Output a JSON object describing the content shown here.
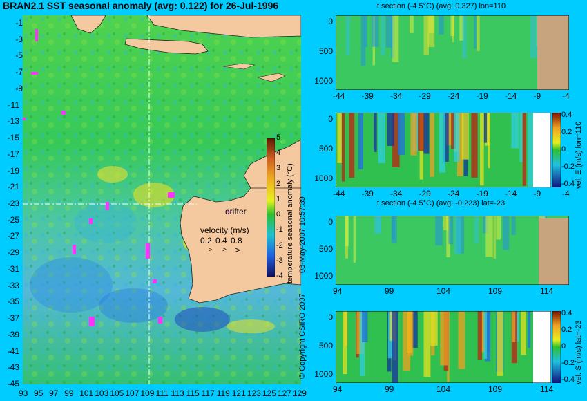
{
  "map": {
    "title": "BRAN2.1 SST seasonal anomaly (avg: 0.122) for 26-Jul-1996",
    "lat_ticks": [
      "-1",
      "-3",
      "-5",
      "-7",
      "-9",
      "-11",
      "-13",
      "-15",
      "-17",
      "-19",
      "-21",
      "-23",
      "-25",
      "-27",
      "-29",
      "-31",
      "-33",
      "-35",
      "-37",
      "-39",
      "-41",
      "-43",
      "-45"
    ],
    "lon_ticks": [
      "93",
      "95",
      "97",
      "99",
      "101",
      "103",
      "105",
      "107",
      "109",
      "111",
      "113",
      "115",
      "117",
      "119",
      "121",
      "123",
      "125",
      "127",
      "129"
    ],
    "colorbar_label": "temperature seasonal anomaly (°C)",
    "colorbar_ticks": [
      "5",
      "4",
      "3",
      "2",
      "1",
      "0",
      "-1",
      "-2",
      "-3",
      "-4"
    ],
    "drifter_label": "drifter",
    "velocity_label": "velocity (m/s)",
    "velocity_values": [
      "0.2",
      "0.4",
      "0.8"
    ],
    "colors": {
      "land": "#f5c9a0",
      "drifter": "#ff33ff",
      "background": "#00ccff"
    }
  },
  "panels": [
    {
      "title": "t section (-4.5°C) (avg: 0.327) lon=110",
      "x_ticks": [
        "-44",
        "-39",
        "-34",
        "-29",
        "-24",
        "-19",
        "-14",
        "-9",
        "-4"
      ],
      "y_ticks": [
        "0",
        "500",
        "1000"
      ]
    },
    {
      "title": "",
      "x_ticks": [
        "-44",
        "-39",
        "-34",
        "-29",
        "-24",
        "-19",
        "-14",
        "-9",
        "-4"
      ],
      "y_ticks": [
        "0",
        "500",
        "1000"
      ],
      "colorbar_label": "vel. E (m/s) lon=110",
      "colorbar_ticks": [
        "0.4",
        "0.2",
        "0",
        "-0.2",
        "-0.4"
      ]
    },
    {
      "title": "t section (-4.5°C) (avg: -0.223) lat=-23",
      "x_ticks": [
        "94",
        "99",
        "104",
        "109",
        "114"
      ],
      "y_ticks": [
        "0",
        "500",
        "1000"
      ]
    },
    {
      "title": "",
      "x_ticks": [
        "94",
        "99",
        "104",
        "109",
        "114"
      ],
      "y_ticks": [
        "0",
        "500",
        "1000"
      ],
      "colorbar_label": "vel. S (m/s) lat=-23",
      "colorbar_ticks": [
        "0.4",
        "0.2",
        "0",
        "-0.2",
        "-0.4"
      ]
    }
  ],
  "side_text": {
    "date": "03-May-2007 10:57:39",
    "copyright": "© Copyright CSIRO 2007"
  },
  "chart_data": [
    {
      "type": "heatmap",
      "title": "BRAN2.1 SST seasonal anomaly (avg: 0.122) for 26-Jul-1996",
      "xlabel": "",
      "ylabel": "",
      "xlim": [
        93,
        130
      ],
      "ylim": [
        -45,
        0
      ],
      "colorbar_label": "temperature seasonal anomaly (°C)",
      "colorbar_range": [
        -4,
        5
      ],
      "mean": 0.122,
      "section_lines": {
        "lon": 110,
        "lat": -23
      }
    },
    {
      "type": "heatmap",
      "title": "t section (-4.5°C) (avg: 0.327) lon=110",
      "x_ticks": [
        -44,
        -39,
        -34,
        -29,
        -24,
        -19,
        -14,
        -9,
        -4
      ],
      "y_ticks": [
        0,
        500,
        1000
      ],
      "mean": 0.327
    },
    {
      "type": "heatmap",
      "title": "",
      "x_ticks": [
        -44,
        -39,
        -34,
        -29,
        -24,
        -19,
        -14,
        -9,
        -4
      ],
      "y_ticks": [
        0,
        500,
        1000
      ],
      "colorbar_label": "vel. E (m/s) lon=110",
      "colorbar_range": [
        -0.4,
        0.4
      ]
    },
    {
      "type": "heatmap",
      "title": "t section (-4.5°C) (avg: -0.223) lat=-23",
      "x_ticks": [
        94,
        99,
        104,
        109,
        114
      ],
      "y_ticks": [
        0,
        500,
        1000
      ],
      "mean": -0.223
    },
    {
      "type": "heatmap",
      "title": "",
      "x_ticks": [
        94,
        99,
        104,
        109,
        114
      ],
      "y_ticks": [
        0,
        500,
        1000
      ],
      "colorbar_label": "vel. S (m/s) lat=-23",
      "colorbar_range": [
        -0.4,
        0.4
      ]
    }
  ]
}
